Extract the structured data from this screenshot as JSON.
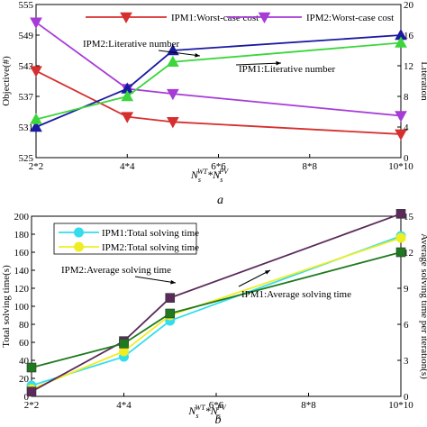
{
  "chart_data": [
    {
      "type": "line",
      "panel_label": "a",
      "x": [
        "2*2",
        "4*4",
        "5*5",
        "10*10"
      ],
      "xticks": [
        "2*2",
        "4*4",
        "6*6",
        "8*8",
        "10*10"
      ],
      "xlabel_parts": [
        "N",
        "s",
        "WT",
        "*N",
        "s",
        "PV"
      ],
      "ylabel": "Objective(#)",
      "y2label": "Literation",
      "ylim": [
        525,
        555
      ],
      "y2lim": [
        0,
        20
      ],
      "yticks": [
        "525",
        "531",
        "537",
        "543",
        "549",
        "555"
      ],
      "y2ticks": [
        "0",
        "4",
        "8",
        "12",
        "16",
        "20"
      ],
      "series": [
        {
          "name": "IPM1:Worst-case cost",
          "axis": "left",
          "marker": "triangle-down",
          "color": "#d62f2f",
          "values": [
            542,
            533,
            532,
            529.6
          ]
        },
        {
          "name": "IPM2:Worst-case cost",
          "axis": "left",
          "marker": "triangle-down",
          "color": "#a63bd6",
          "values": [
            551.5,
            538.5,
            537.5,
            533.2
          ]
        },
        {
          "axis": "right",
          "marker": "triangle-up",
          "color": "#1a1aa0",
          "values": [
            4,
            9,
            14,
            16
          ]
        },
        {
          "axis": "right",
          "marker": "triangle-up",
          "color": "#3cd63c",
          "values": [
            5,
            8,
            12.5,
            15
          ]
        }
      ],
      "annotations": [
        "IPM2:Literative number",
        "IPM1:Literative number"
      ],
      "legend_position": "top",
      "grid": false
    },
    {
      "type": "line",
      "panel_label": "b",
      "x": [
        "2*2",
        "4*4",
        "5*5",
        "10*10"
      ],
      "xticks": [
        "2*2",
        "4*4",
        "6*6",
        "8*8",
        "10*10"
      ],
      "xlabel_parts": [
        "N",
        "s",
        "WT",
        "*N",
        "s",
        "PV"
      ],
      "ylabel": "Total solving time(s)",
      "y2label": "Average solving time per iteration(s)",
      "ylim": [
        0,
        200
      ],
      "y2lim": [
        0,
        15
      ],
      "yticks": [
        "0",
        "20",
        "40",
        "60",
        "80",
        "100",
        "120",
        "140",
        "160",
        "180",
        "200"
      ],
      "y2ticks": [
        "0",
        "3",
        "6",
        "9",
        "12",
        "15"
      ],
      "series": [
        {
          "name": "IPM1:Total solving time",
          "axis": "left",
          "marker": "circle",
          "color": "#33ddee",
          "values": [
            12,
            44,
            84,
            178
          ]
        },
        {
          "name": "IPM2:Total solving time",
          "axis": "left",
          "marker": "circle",
          "color": "#eeee22",
          "values": [
            8,
            50,
            90,
            176
          ]
        },
        {
          "axis": "right",
          "marker": "square",
          "color": "#5a2a5a",
          "values": [
            0.4,
            4.6,
            8.2,
            15.2
          ]
        },
        {
          "axis": "right",
          "marker": "square",
          "color": "#1f7a1f",
          "values": [
            2.4,
            4.4,
            6.9,
            12
          ]
        }
      ],
      "annotations": [
        "IPM2:Average solving time",
        "IPM1:Average solving time"
      ],
      "legend_position": "top-left",
      "grid": false
    }
  ]
}
